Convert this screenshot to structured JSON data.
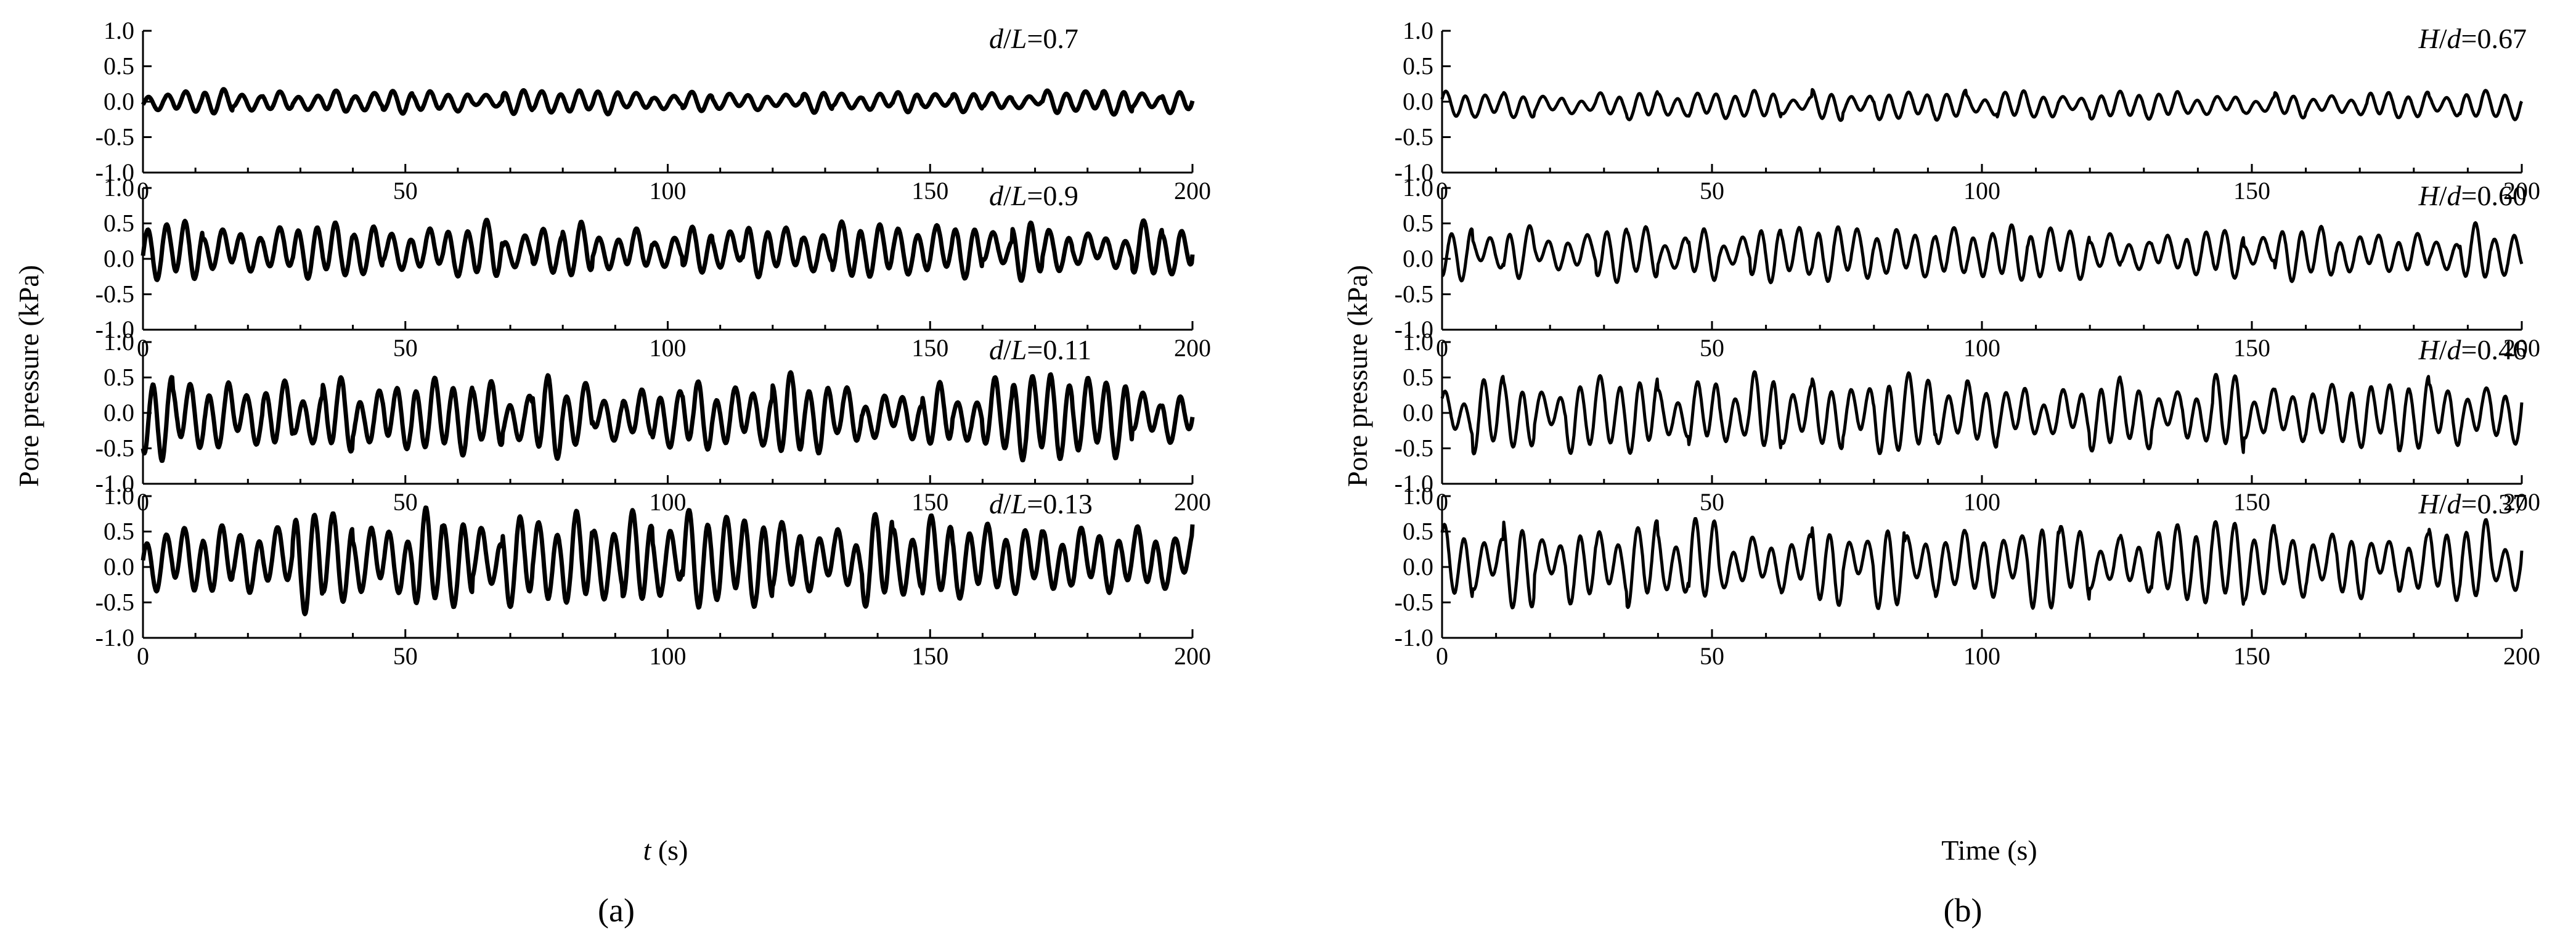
{
  "figure": {
    "panel_a_label": "(a)",
    "panel_b_label": "(b)",
    "panel_a_ylabel": "Pore pressure (kPa)",
    "panel_b_ylabel": "Pore pressure (kPa)",
    "panel_a_xlabel_italic": "t",
    "panel_a_xlabel_unit": " (s)",
    "panel_b_xlabel": "Time (s)"
  },
  "chart_data": [
    {
      "type": "line",
      "panel": "a",
      "subplots": [
        {
          "annotation_var": "d/L",
          "annotation_val": "=0.7",
          "amplitude": 0.12,
          "offset": 0.0,
          "seed": 11
        },
        {
          "annotation_var": "d/L",
          "annotation_val": "=0.9",
          "amplitude": 0.3,
          "offset": 0.12,
          "seed": 23
        },
        {
          "annotation_var": "d/L",
          "annotation_val": "=0.11",
          "amplitude": 0.42,
          "offset": -0.05,
          "seed": 37
        },
        {
          "annotation_var": "d/L",
          "annotation_val": "=0.13",
          "amplitude": 0.5,
          "offset": 0.1,
          "seed": 41
        }
      ],
      "x_range": [
        0,
        200
      ],
      "x_ticks": [
        0,
        50,
        100,
        150,
        200
      ],
      "y_range": [
        -1.0,
        1.0
      ],
      "y_ticks": [
        "1.0",
        "0.5",
        "0.0",
        "-0.5",
        "-1.0"
      ],
      "xlabel": "t (s)",
      "ylabel": "Pore pressure (kPa)",
      "grid": false,
      "legend": "none"
    },
    {
      "type": "line",
      "panel": "b",
      "subplots": [
        {
          "annotation_var": "H/d",
          "annotation_val": "=0.67",
          "amplitude": 0.15,
          "offset": -0.05,
          "seed": 53
        },
        {
          "annotation_var": "H/d",
          "annotation_val": "=0.60",
          "amplitude": 0.28,
          "offset": 0.08,
          "seed": 67
        },
        {
          "annotation_var": "H/d",
          "annotation_val": "=0.46",
          "amplitude": 0.4,
          "offset": -0.02,
          "seed": 71
        },
        {
          "annotation_var": "H/d",
          "annotation_val": "=0.37",
          "amplitude": 0.45,
          "offset": 0.05,
          "seed": 83
        }
      ],
      "x_range": [
        0,
        200
      ],
      "x_ticks": [
        0,
        50,
        100,
        150,
        200
      ],
      "y_range": [
        -1.0,
        1.0
      ],
      "y_ticks": [
        "1.0",
        "0.5",
        "0.0",
        "-0.5",
        "-1.0"
      ],
      "xlabel": "Time (s)",
      "ylabel": "Pore pressure (kPa)",
      "grid": false,
      "legend": "none"
    }
  ]
}
